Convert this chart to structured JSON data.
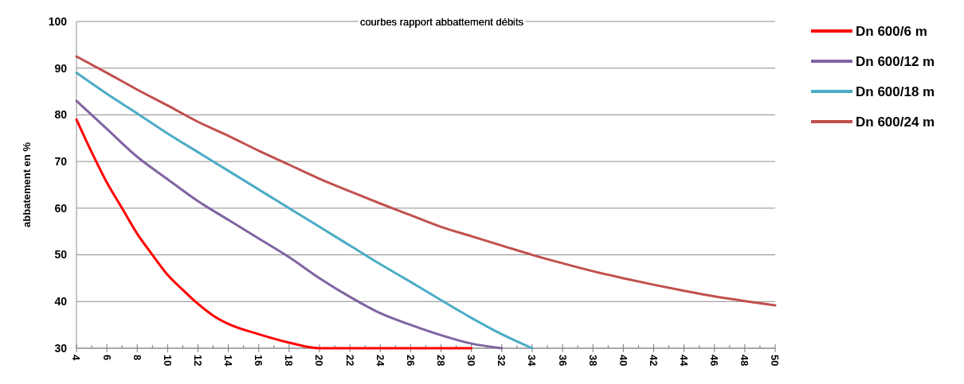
{
  "chart_data": {
    "type": "line",
    "title": "courbes rapport abbattement débits",
    "ylabel": "abbatement en %",
    "xlim": [
      4,
      50
    ],
    "xticks": [
      4,
      6,
      8,
      10,
      12,
      14,
      16,
      18,
      20,
      22,
      24,
      26,
      28,
      30,
      32,
      34,
      36,
      38,
      40,
      42,
      44,
      46,
      48,
      50
    ],
    "ylim": [
      30,
      100
    ],
    "yticks": [
      30,
      40,
      50,
      60,
      70,
      80,
      90,
      100
    ],
    "grid": "y",
    "legend": "right",
    "marker": "none",
    "series": [
      {
        "name": "Dn 600/6 m",
        "color": "#ff0000",
        "x": [
          4,
          5,
          6,
          7,
          8,
          9,
          10,
          11,
          12,
          13,
          14,
          16,
          18,
          20,
          30
        ],
        "values": [
          79,
          72,
          65.5,
          60,
          54.5,
          50,
          45.7,
          42.5,
          39.5,
          37,
          35.2,
          33,
          31.2,
          30,
          30
        ]
      },
      {
        "name": "Dn 600/12 m",
        "color": "#8064a2",
        "x": [
          4,
          6,
          8,
          10,
          12,
          14,
          16,
          18,
          20,
          22,
          24,
          26,
          28,
          30,
          32
        ],
        "values": [
          83,
          77,
          71,
          66.2,
          61.5,
          57.5,
          53.5,
          49.5,
          45,
          41,
          37.5,
          35,
          32.8,
          31,
          30
        ]
      },
      {
        "name": "Dn 600/18 m",
        "color": "#4bacc6",
        "x": [
          4,
          6,
          8,
          10,
          12,
          14,
          16,
          18,
          20,
          22,
          24,
          26,
          28,
          30,
          32,
          34
        ],
        "values": [
          89,
          84.5,
          80.3,
          76,
          72,
          68,
          64,
          60,
          56,
          52,
          48,
          44.2,
          40.3,
          36.5,
          33,
          30
        ]
      },
      {
        "name": "Dn 600/24 m",
        "color": "#c0504d",
        "x": [
          4,
          6,
          8,
          10,
          12,
          14,
          16,
          18,
          20,
          22,
          24,
          26,
          28,
          30,
          32,
          34,
          36,
          38,
          40,
          42,
          44,
          46,
          48,
          50
        ],
        "values": [
          92.5,
          89,
          85.4,
          82,
          78.5,
          75.5,
          72.3,
          69.3,
          66.3,
          63.6,
          61,
          58.5,
          56,
          54,
          52,
          50,
          48.2,
          46.5,
          45,
          43.6,
          42.3,
          41.1,
          40.1,
          39.2
        ]
      }
    ]
  }
}
